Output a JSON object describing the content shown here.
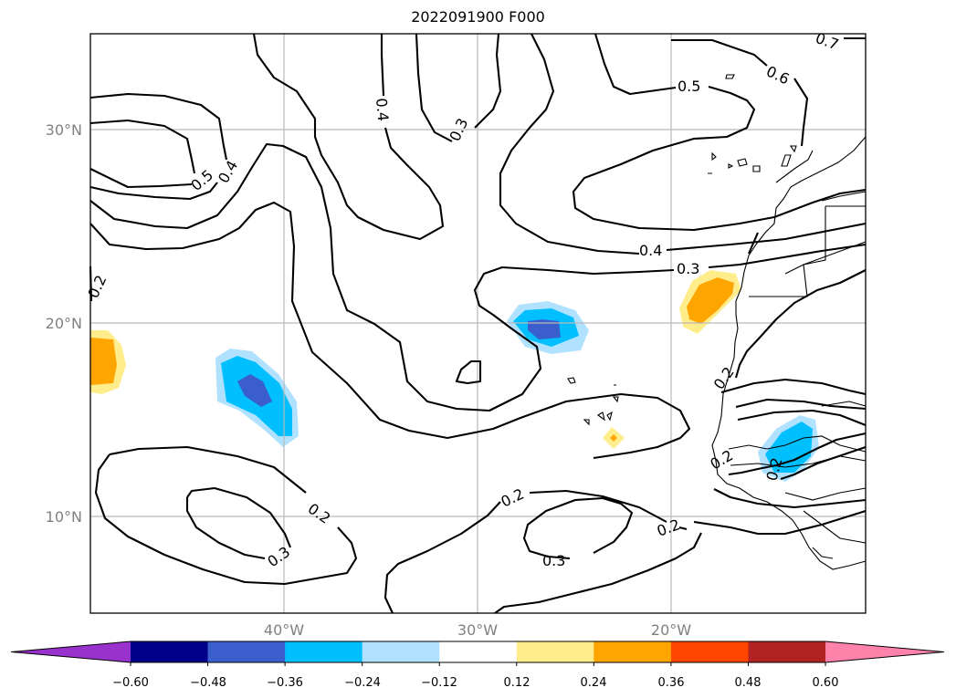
{
  "title": "2022091900 F000",
  "map": {
    "lat_labels": [
      "30°N",
      "20°N",
      "10°N"
    ],
    "lon_labels": [
      "40°W",
      "30°W",
      "20°W"
    ],
    "contour_labels": [
      "0.7",
      "0.6",
      "0.5",
      "0.4",
      "0.3",
      "0.5",
      "0.4",
      "0.2",
      "0.4",
      "0.3",
      "0.2",
      "0.2",
      "0.3",
      "0.2",
      "0.3",
      "0.2",
      "0.2",
      "0.2"
    ]
  },
  "colorbar": {
    "ticks": [
      "−0.60",
      "−0.48",
      "−0.36",
      "−0.24",
      "−0.12",
      "0.12",
      "0.24",
      "0.36",
      "0.48",
      "0.60"
    ],
    "colors": [
      "#9932cc",
      "#00008b",
      "#3a5fcd",
      "#00bfff",
      "#b0e2ff",
      "#ffffff",
      "#ffec8b",
      "#ffa500",
      "#ff4500",
      "#b22222",
      "#ff82ab"
    ]
  }
}
